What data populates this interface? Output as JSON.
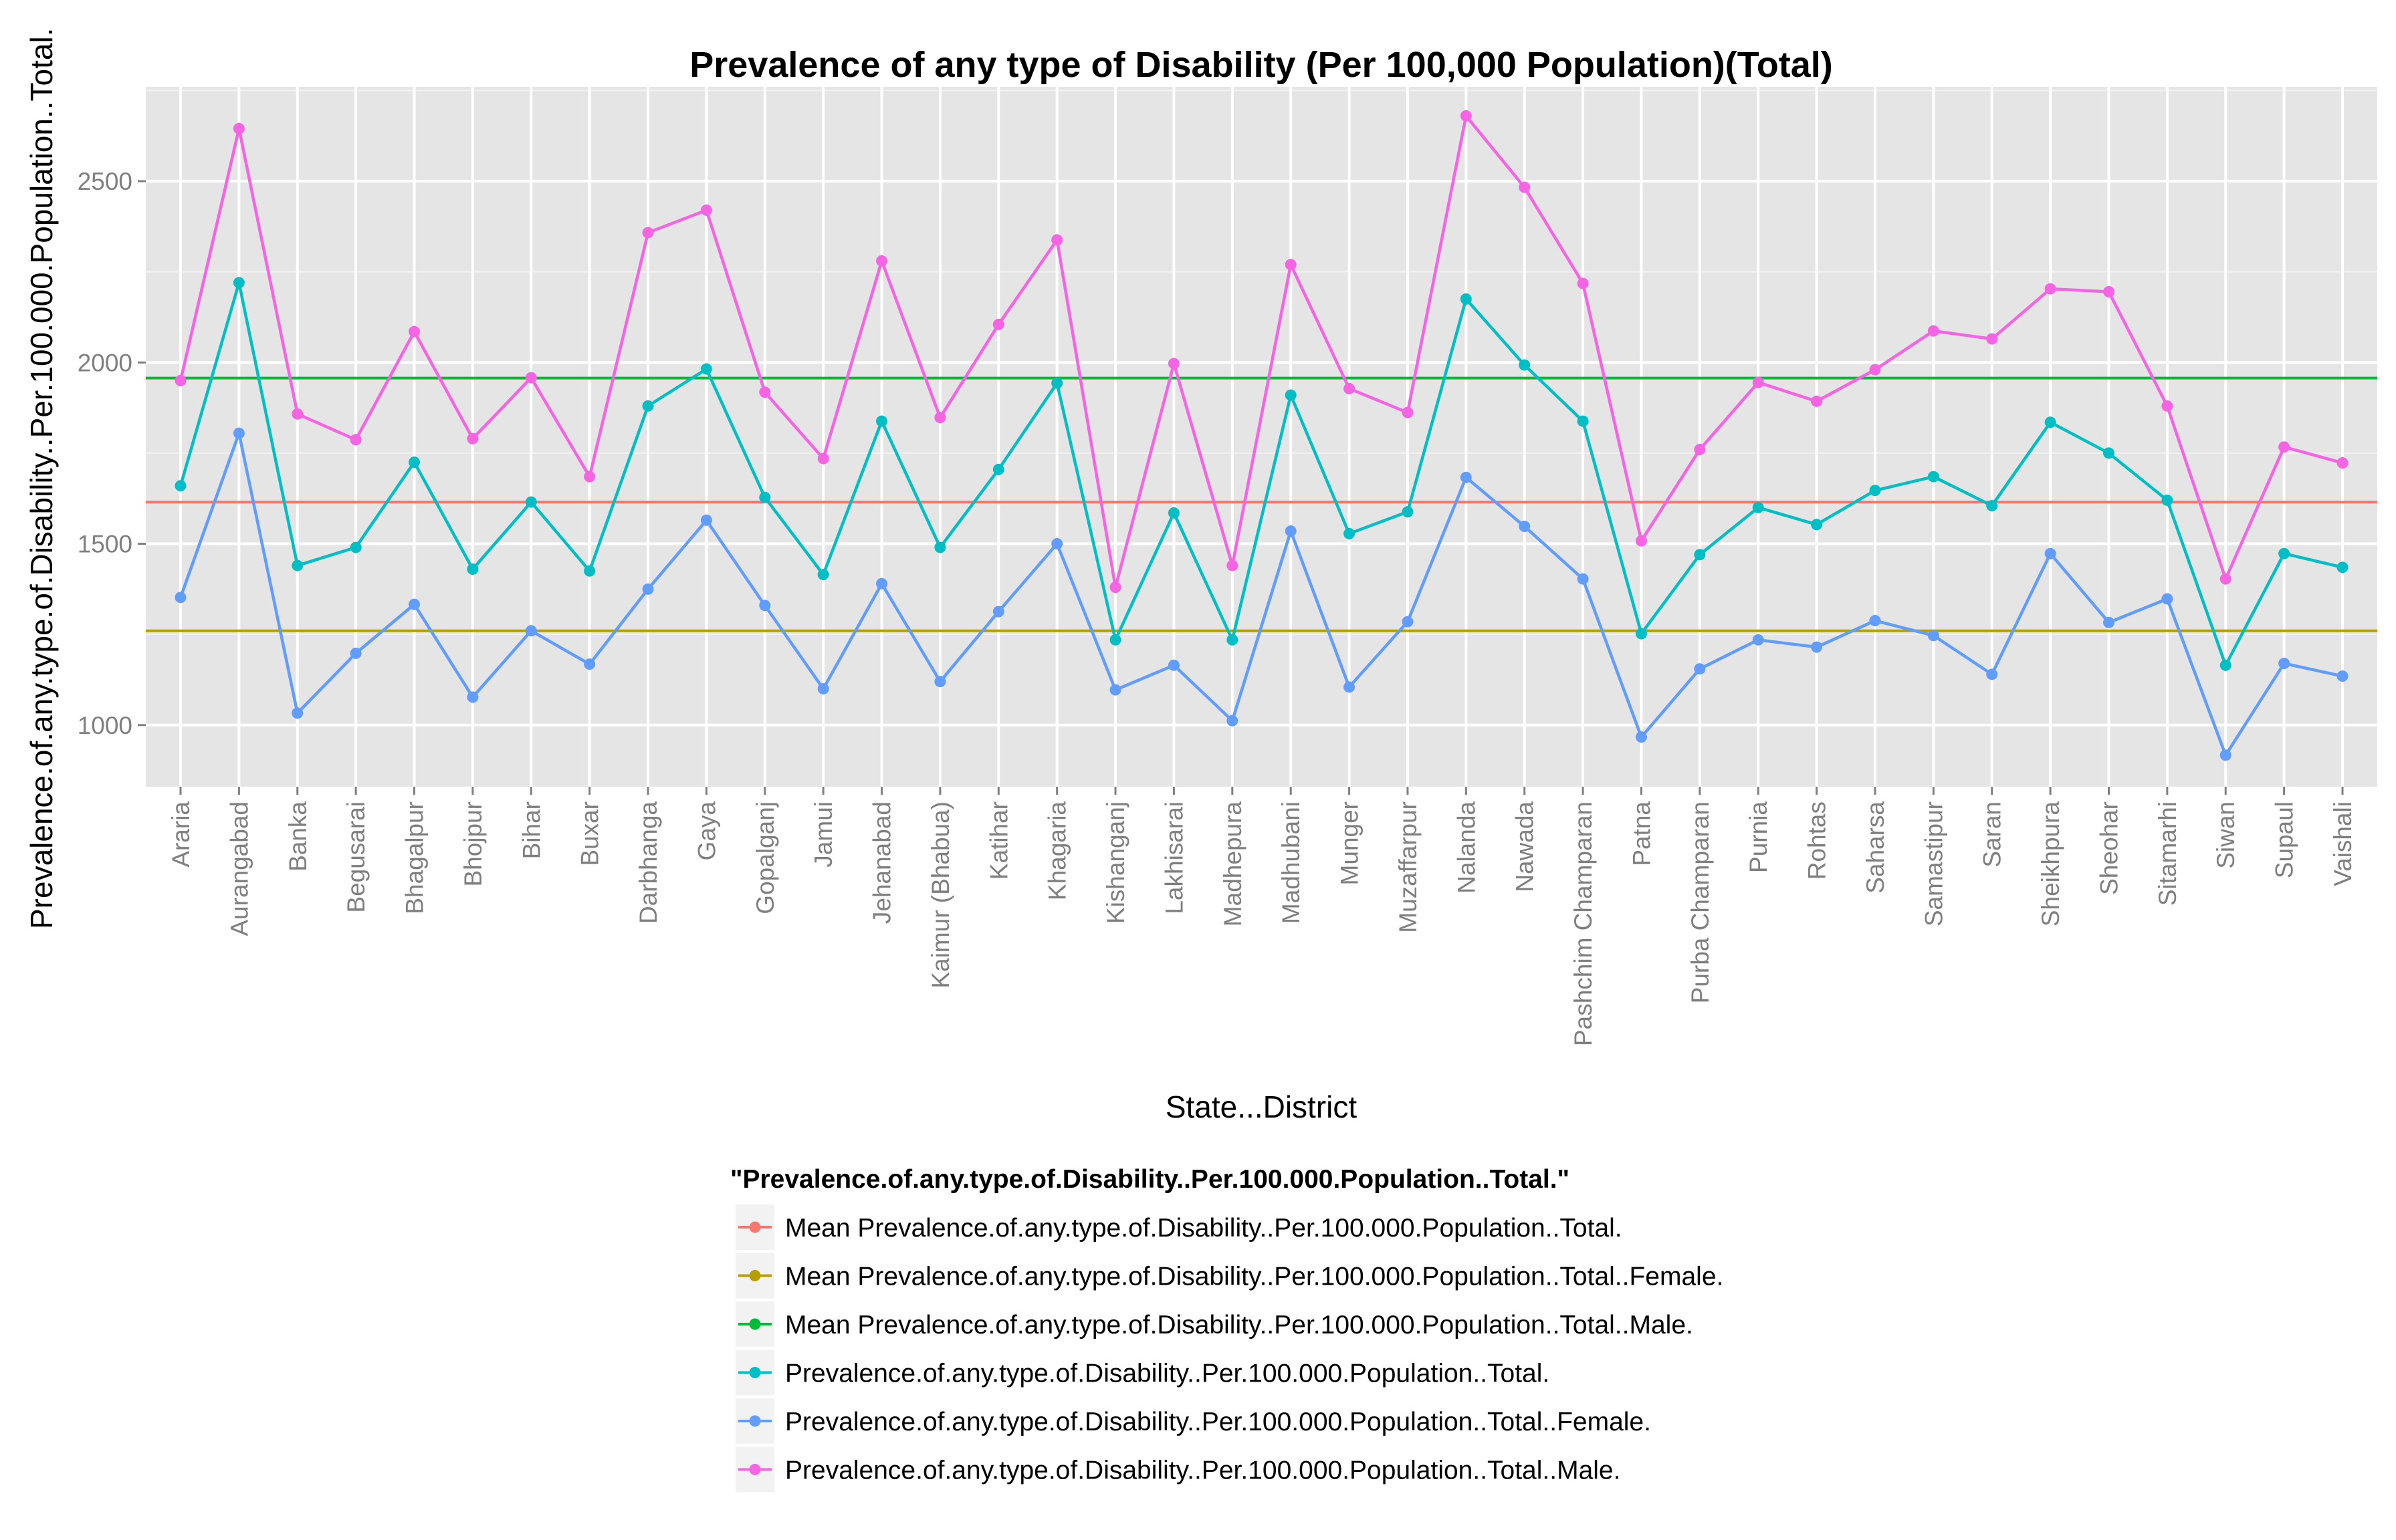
{
  "chart_data": {
    "type": "line",
    "title": "Prevalence of any type of Disability (Per 100,000 Population)(Total)",
    "xlabel": "State...District",
    "ylabel": "Prevalence.of.any.type.of.Disability..Per.100.000.Population..Total.",
    "ylim": [
      830,
      2760
    ],
    "yticks": [
      1000,
      1500,
      2000,
      2500
    ],
    "grid": true,
    "legend_position": "bottom",
    "legend_title": "\"Prevalence.of.any.type.of.Disability..Per.100.000.Population..Total.\"",
    "categories": [
      "Araria",
      "Aurangabad",
      "Banka",
      "Begusarai",
      "Bhagalpur",
      "Bhojpur",
      "Bihar",
      "Buxar",
      "Darbhanga",
      "Gaya",
      "Gopalganj",
      "Jamui",
      "Jehanabad",
      "Kaimur (Bhabua)",
      "Katihar",
      "Khagaria",
      "Kishanganj",
      "Lakhisarai",
      "Madhepura",
      "Madhubani",
      "Munger",
      "Muzaffarpur",
      "Nalanda",
      "Nawada",
      "Pashchim Champaran",
      "Patna",
      "Purba Champaran",
      "Purnia",
      "Rohtas",
      "Saharsa",
      "Samastipur",
      "Saran",
      "Sheikhpura",
      "Sheohar",
      "Sitamarhi",
      "Siwan",
      "Supaul",
      "Vaishali"
    ],
    "hlines": [
      {
        "name": "Mean Prevalence.of.any.type.of.Disability..Per.100.000.Population..Total.",
        "value": 1615,
        "color": "#F8766D"
      },
      {
        "name": "Mean Prevalence.of.any.type.of.Disability..Per.100.000.Population..Total..Female.",
        "value": 1260,
        "color": "#B79F00"
      },
      {
        "name": "Mean Prevalence.of.any.type.of.Disability..Per.100.000.Population..Total..Male.",
        "value": 1957,
        "color": "#00BA38"
      }
    ],
    "series": [
      {
        "name": "Prevalence.of.any.type.of.Disability..Per.100.000.Population..Total.",
        "color": "#00BFC4",
        "values": [
          1660,
          2220,
          1440,
          1490,
          1725,
          1430,
          1615,
          1425,
          1880,
          1982,
          1628,
          1415,
          1838,
          1490,
          1705,
          1943,
          1235,
          1585,
          1235,
          1910,
          1528,
          1588,
          2175,
          1993,
          1838,
          1252,
          1470,
          1600,
          1553,
          1647,
          1685,
          1605,
          1835,
          1750,
          1620,
          1165,
          1473,
          1435
        ]
      },
      {
        "name": "Prevalence.of.any.type.of.Disability..Per.100.000.Population..Total..Female.",
        "color": "#619CFF",
        "values": [
          1352,
          1805,
          1033,
          1198,
          1333,
          1077,
          1260,
          1168,
          1375,
          1565,
          1330,
          1100,
          1390,
          1120,
          1313,
          1500,
          1097,
          1165,
          1012,
          1535,
          1105,
          1285,
          1683,
          1548,
          1403,
          967,
          1155,
          1235,
          1215,
          1288,
          1247,
          1140,
          1473,
          1283,
          1348,
          917,
          1170,
          1135
        ]
      },
      {
        "name": "Prevalence.of.any.type.of.Disability..Per.100.000.Population..Total..Male.",
        "color": "#F564E3",
        "values": [
          1950,
          2645,
          1858,
          1787,
          2085,
          1790,
          1958,
          1685,
          2358,
          2420,
          1918,
          1735,
          2280,
          1848,
          2105,
          2338,
          1380,
          1997,
          1440,
          2270,
          1928,
          1862,
          2680,
          2483,
          2218,
          1508,
          1760,
          1945,
          1893,
          1980,
          2087,
          2065,
          2203,
          2195,
          1880,
          1403,
          1767,
          1723
        ]
      }
    ]
  }
}
